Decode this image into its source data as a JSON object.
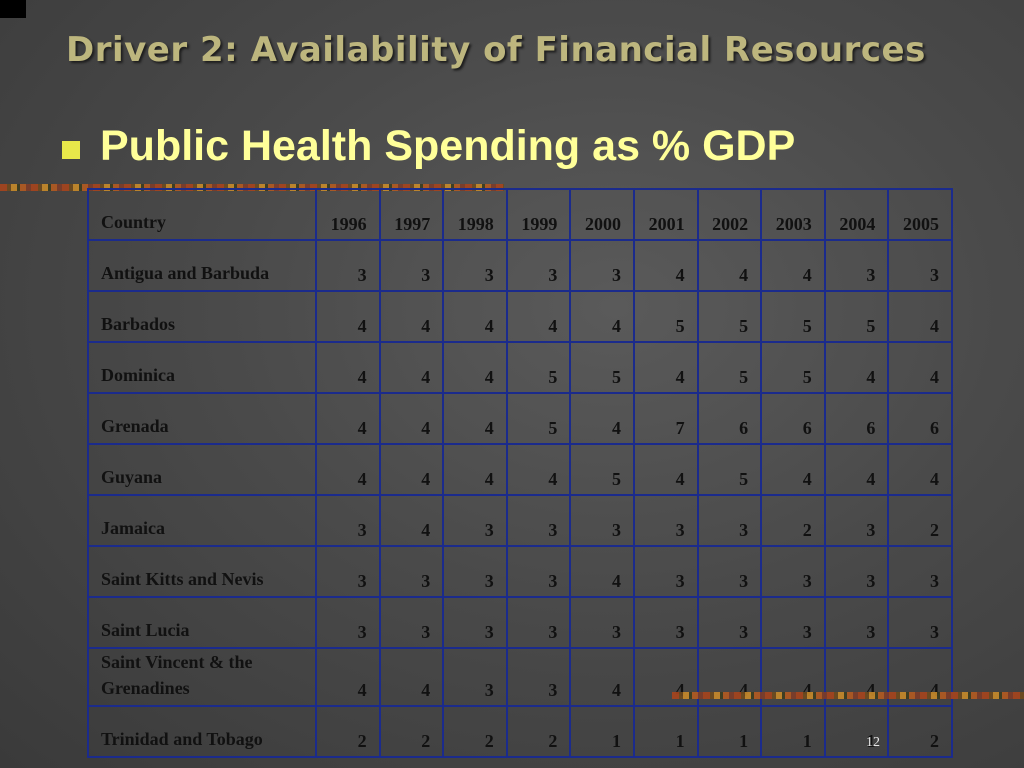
{
  "slide": {
    "title": "Driver 2: Availability of Financial Resources",
    "bullet": "Public Health Spending as % GDP",
    "page_number": "12"
  },
  "table": {
    "headers": [
      "Country",
      "1996",
      "1997",
      "1998",
      "1999",
      "2000",
      "2001",
      "2002",
      "2003",
      "2004",
      "2005"
    ],
    "rows": [
      {
        "country": "Antigua and Barbuda",
        "values": [
          "3",
          "3",
          "3",
          "3",
          "3",
          "4",
          "4",
          "4",
          "3",
          "3"
        ]
      },
      {
        "country": "Barbados",
        "values": [
          "4",
          "4",
          "4",
          "4",
          "4",
          "5",
          "5",
          "5",
          "5",
          "4"
        ]
      },
      {
        "country": "Dominica",
        "values": [
          "4",
          "4",
          "4",
          "5",
          "5",
          "4",
          "5",
          "5",
          "4",
          "4"
        ]
      },
      {
        "country": "Grenada",
        "values": [
          "4",
          "4",
          "4",
          "5",
          "4",
          "7",
          "6",
          "6",
          "6",
          "6"
        ]
      },
      {
        "country": "Guyana",
        "values": [
          "4",
          "4",
          "4",
          "4",
          "5",
          "4",
          "5",
          "4",
          "4",
          "4"
        ]
      },
      {
        "country": "Jamaica",
        "values": [
          "3",
          "4",
          "3",
          "3",
          "3",
          "3",
          "3",
          "2",
          "3",
          "2"
        ]
      },
      {
        "country": "Saint Kitts and Nevis",
        "values": [
          "3",
          "3",
          "3",
          "3",
          "4",
          "3",
          "3",
          "3",
          "3",
          "3"
        ]
      },
      {
        "country": "Saint Lucia",
        "values": [
          "3",
          "3",
          "3",
          "3",
          "3",
          "3",
          "3",
          "3",
          "3",
          "3"
        ]
      },
      {
        "country": "Saint Vincent & the Grenadines",
        "values": [
          "4",
          "4",
          "3",
          "3",
          "4",
          "4",
          "4",
          "4",
          "4",
          "4"
        ]
      },
      {
        "country": "Trinidad and Tobago",
        "values": [
          "2",
          "2",
          "2",
          "2",
          "1",
          "1",
          "1",
          "1",
          "1",
          "2"
        ]
      }
    ]
  },
  "colors": {
    "title": "#bdb67e",
    "bullet_text": "#ffff99",
    "bullet_marker": "#e8e84a",
    "table_border": "#1b2b8c"
  }
}
